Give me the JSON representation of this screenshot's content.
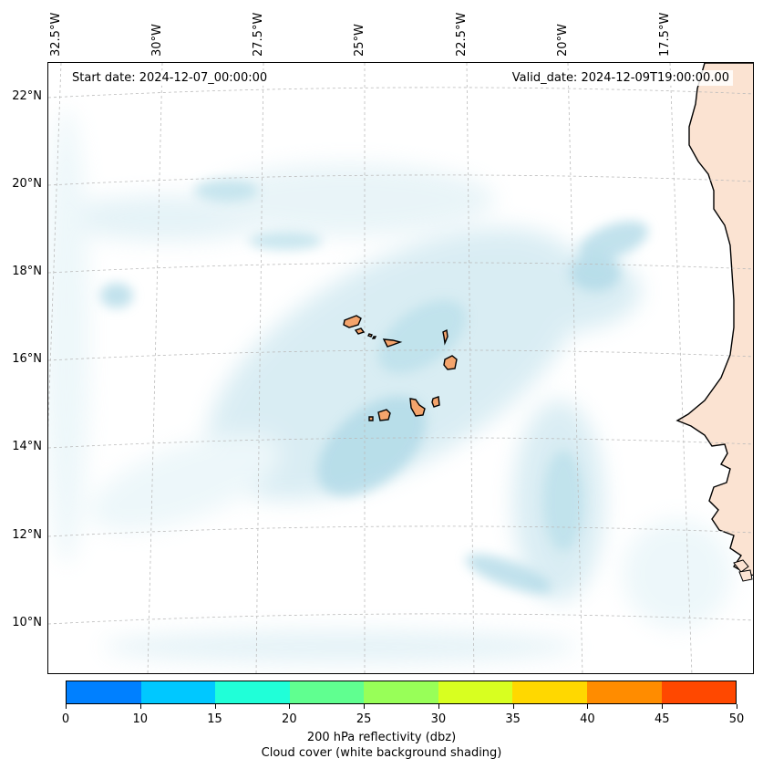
{
  "map": {
    "start_label": "Start date: 2024-12-07_00:00:00",
    "valid_label": "Valid_date: 2024-12-09T19:00:00.00",
    "lon_labels": [
      "32.5°W",
      "30°W",
      "27.5°W",
      "25°W",
      "22.5°W",
      "20°W",
      "17.5°W"
    ],
    "lat_labels": [
      "22°N",
      "20°N",
      "18°N",
      "16°N",
      "14°N",
      "12°N",
      "10°N"
    ],
    "lon_extent": [
      -33.0,
      -16.0
    ],
    "lat_extent": [
      9.0,
      22.8
    ],
    "land_color": "#f4a46c",
    "africa_fill": "#fbe3d2",
    "cloud_color": "#add8e6",
    "gridlines": true
  },
  "colorbar": {
    "ticks": [
      "0",
      "10",
      "15",
      "20",
      "25",
      "30",
      "35",
      "40",
      "45",
      "50"
    ],
    "colors": [
      "#0080ff",
      "#00c8ff",
      "#20ffd8",
      "#60ff90",
      "#98ff58",
      "#d8ff20",
      "#ffd800",
      "#ff8c00",
      "#ff4800"
    ],
    "label_line1": "200 hPa reflectivity (dbz)",
    "label_line2": "Cloud cover (white background shading)"
  }
}
